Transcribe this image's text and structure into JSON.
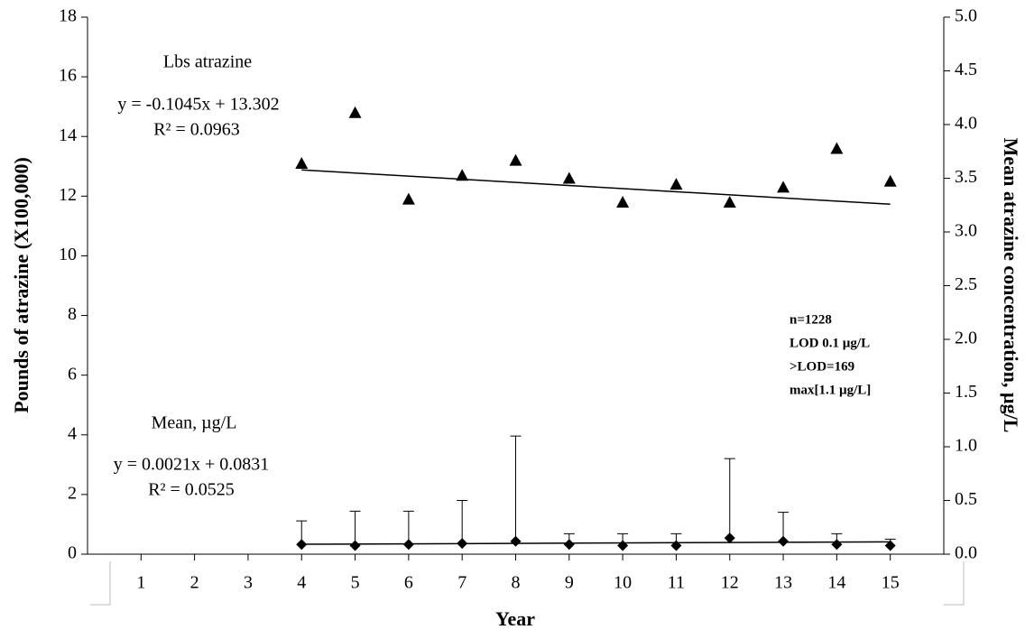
{
  "chart_data": {
    "type": "scatter",
    "x_label": "Year",
    "y_label": "Pounds of atrazine (X100,000)",
    "y2_label": "Mean atrazine concentration, µg/L",
    "xlim": [
      0,
      16
    ],
    "xticks": [
      1,
      2,
      3,
      4,
      5,
      6,
      7,
      8,
      9,
      10,
      11,
      12,
      13,
      14,
      15
    ],
    "ylim": [
      0,
      18
    ],
    "yticks": [
      0,
      2,
      4,
      6,
      8,
      10,
      12,
      14,
      16,
      18
    ],
    "y2lim": [
      0,
      5
    ],
    "y2ticks": [
      {
        "value": 0,
        "label": "0.0"
      },
      0.5,
      {
        "value": 1,
        "label": "1.0"
      },
      1.5,
      {
        "value": 2,
        "label": "2.0"
      },
      2.5,
      {
        "value": 3,
        "label": "3.0"
      },
      3.5,
      {
        "value": 4,
        "label": "4.0"
      },
      4.5,
      {
        "value": 5,
        "label": "5.0"
      }
    ],
    "series": [
      {
        "name": "Lbs atrazine",
        "marker": "triangle",
        "color": "#000000",
        "axis": "y",
        "x": [
          4,
          5,
          6,
          7,
          8,
          9,
          10,
          11,
          12,
          13,
          14,
          15
        ],
        "values": [
          13.1,
          14.8,
          11.9,
          12.7,
          13.2,
          12.6,
          11.8,
          12.4,
          11.8,
          12.3,
          13.6,
          12.5
        ],
        "trend": {
          "x": [
            4,
            15
          ],
          "values": [
            12.88,
            11.73
          ]
        },
        "equation": "y = -0.1045x + 13.302",
        "r2": "R² = 0.0963"
      },
      {
        "name": "Mean, µg/L",
        "marker": "diamond",
        "color": "#000000",
        "axis": "y2",
        "x": [
          4,
          5,
          6,
          7,
          8,
          9,
          10,
          11,
          12,
          13,
          14,
          15
        ],
        "values": [
          0.09,
          0.08,
          0.09,
          0.1,
          0.12,
          0.09,
          0.08,
          0.08,
          0.15,
          0.12,
          0.09,
          0.08
        ],
        "errors": [
          0.22,
          0.32,
          0.31,
          0.4,
          0.98,
          0.1,
          0.11,
          0.11,
          0.74,
          0.27,
          0.1,
          0.06
        ],
        "trend": {
          "x": [
            4,
            15
          ],
          "values": [
            0.092,
            0.115
          ]
        },
        "equation": "y = 0.0021x + 0.0831",
        "r2": "R² = 0.0525"
      }
    ],
    "stats": [
      "n=1228",
      "LOD 0.1 µg/L",
      ">LOD=169",
      "max[1.1 µg/L]"
    ]
  }
}
